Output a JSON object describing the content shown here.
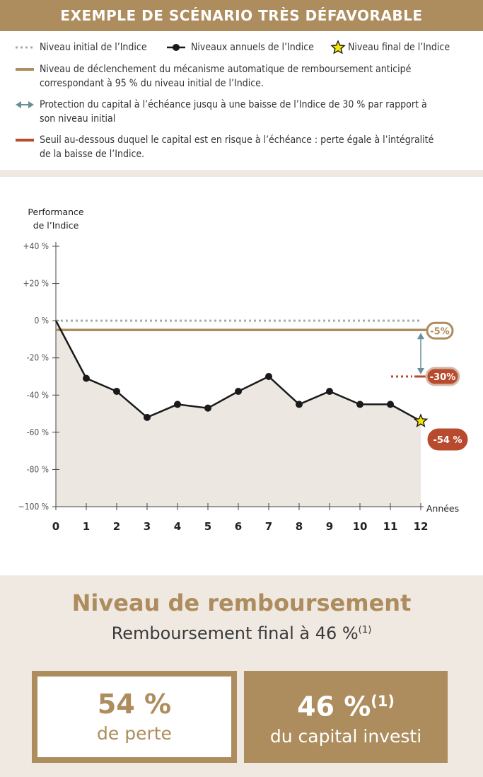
{
  "header": {
    "title": "EXEMPLE DE SCÉNARIO TRÈS DÉFAVORABLE"
  },
  "legend": {
    "initial": "Niveau initial de l’Indice",
    "annual": "Niveaux annuels de l’Indice",
    "final": "Niveau final de l’Indice",
    "trigger_l1": "Niveau de déclenchement du mécanisme automatique de remboursement anticipé",
    "trigger_l2": "correspondant à 95 % du niveau initial de l’Indice.",
    "protection_l1": "Protection du capital à l’échéance jusqu à une baisse de l’Indice de 30 % par rapport à",
    "protection_l2": "son niveau initial",
    "threshold_l1": "Seuil au-dessous duquel le capital est en risque à l’échéance : perte égale à l’intégralité",
    "threshold_l2": "de la baisse de l’Indice."
  },
  "chart_data": {
    "type": "line",
    "ylabel_l1": "Performance",
    "ylabel_l2": "de l’Indice",
    "xlabel": "Années",
    "x": [
      0,
      1,
      2,
      3,
      4,
      5,
      6,
      7,
      8,
      9,
      10,
      11,
      12
    ],
    "values": [
      0,
      -31,
      -38,
      -52,
      -45,
      -47,
      -38,
      -30,
      -45,
      -38,
      -45,
      -45,
      -54
    ],
    "ylim": [
      -100,
      40
    ],
    "yticks": [
      40,
      20,
      0,
      -20,
      -40,
      -60,
      -80,
      -100
    ],
    "ytick_labels": [
      "+40 %",
      "+20 %",
      "0 %",
      "-20 %",
      "-40 %",
      "-60 %",
      "-80 %",
      "−100 %"
    ],
    "xtick_labels": [
      "0",
      "1",
      "2",
      "3",
      "4",
      "5",
      "6",
      "7",
      "8",
      "9",
      "10",
      "11",
      "12"
    ],
    "initial_level": 0,
    "trigger_level": -5,
    "threshold_level": -30,
    "final_value": -54,
    "badge_trigger": "-5%",
    "badge_threshold": "-30%",
    "badge_final": "-54 %",
    "colors": {
      "gold": "#ad8c5d",
      "red": "#b84a2d",
      "line": "#1a1a1a",
      "fill": "#ece7e1",
      "dotted": "#a9a9a9",
      "arrow": "#6a8f99",
      "star": "#f5e500"
    }
  },
  "summary": {
    "title": "Niveau de remboursement",
    "subtitle": "Remboursement final à 46 %",
    "subtitle_note": "(1)",
    "loss_value": "54 %",
    "loss_label": "de perte",
    "capital_value": "46 %",
    "capital_note": "(1)",
    "capital_label": "du capital investi"
  }
}
